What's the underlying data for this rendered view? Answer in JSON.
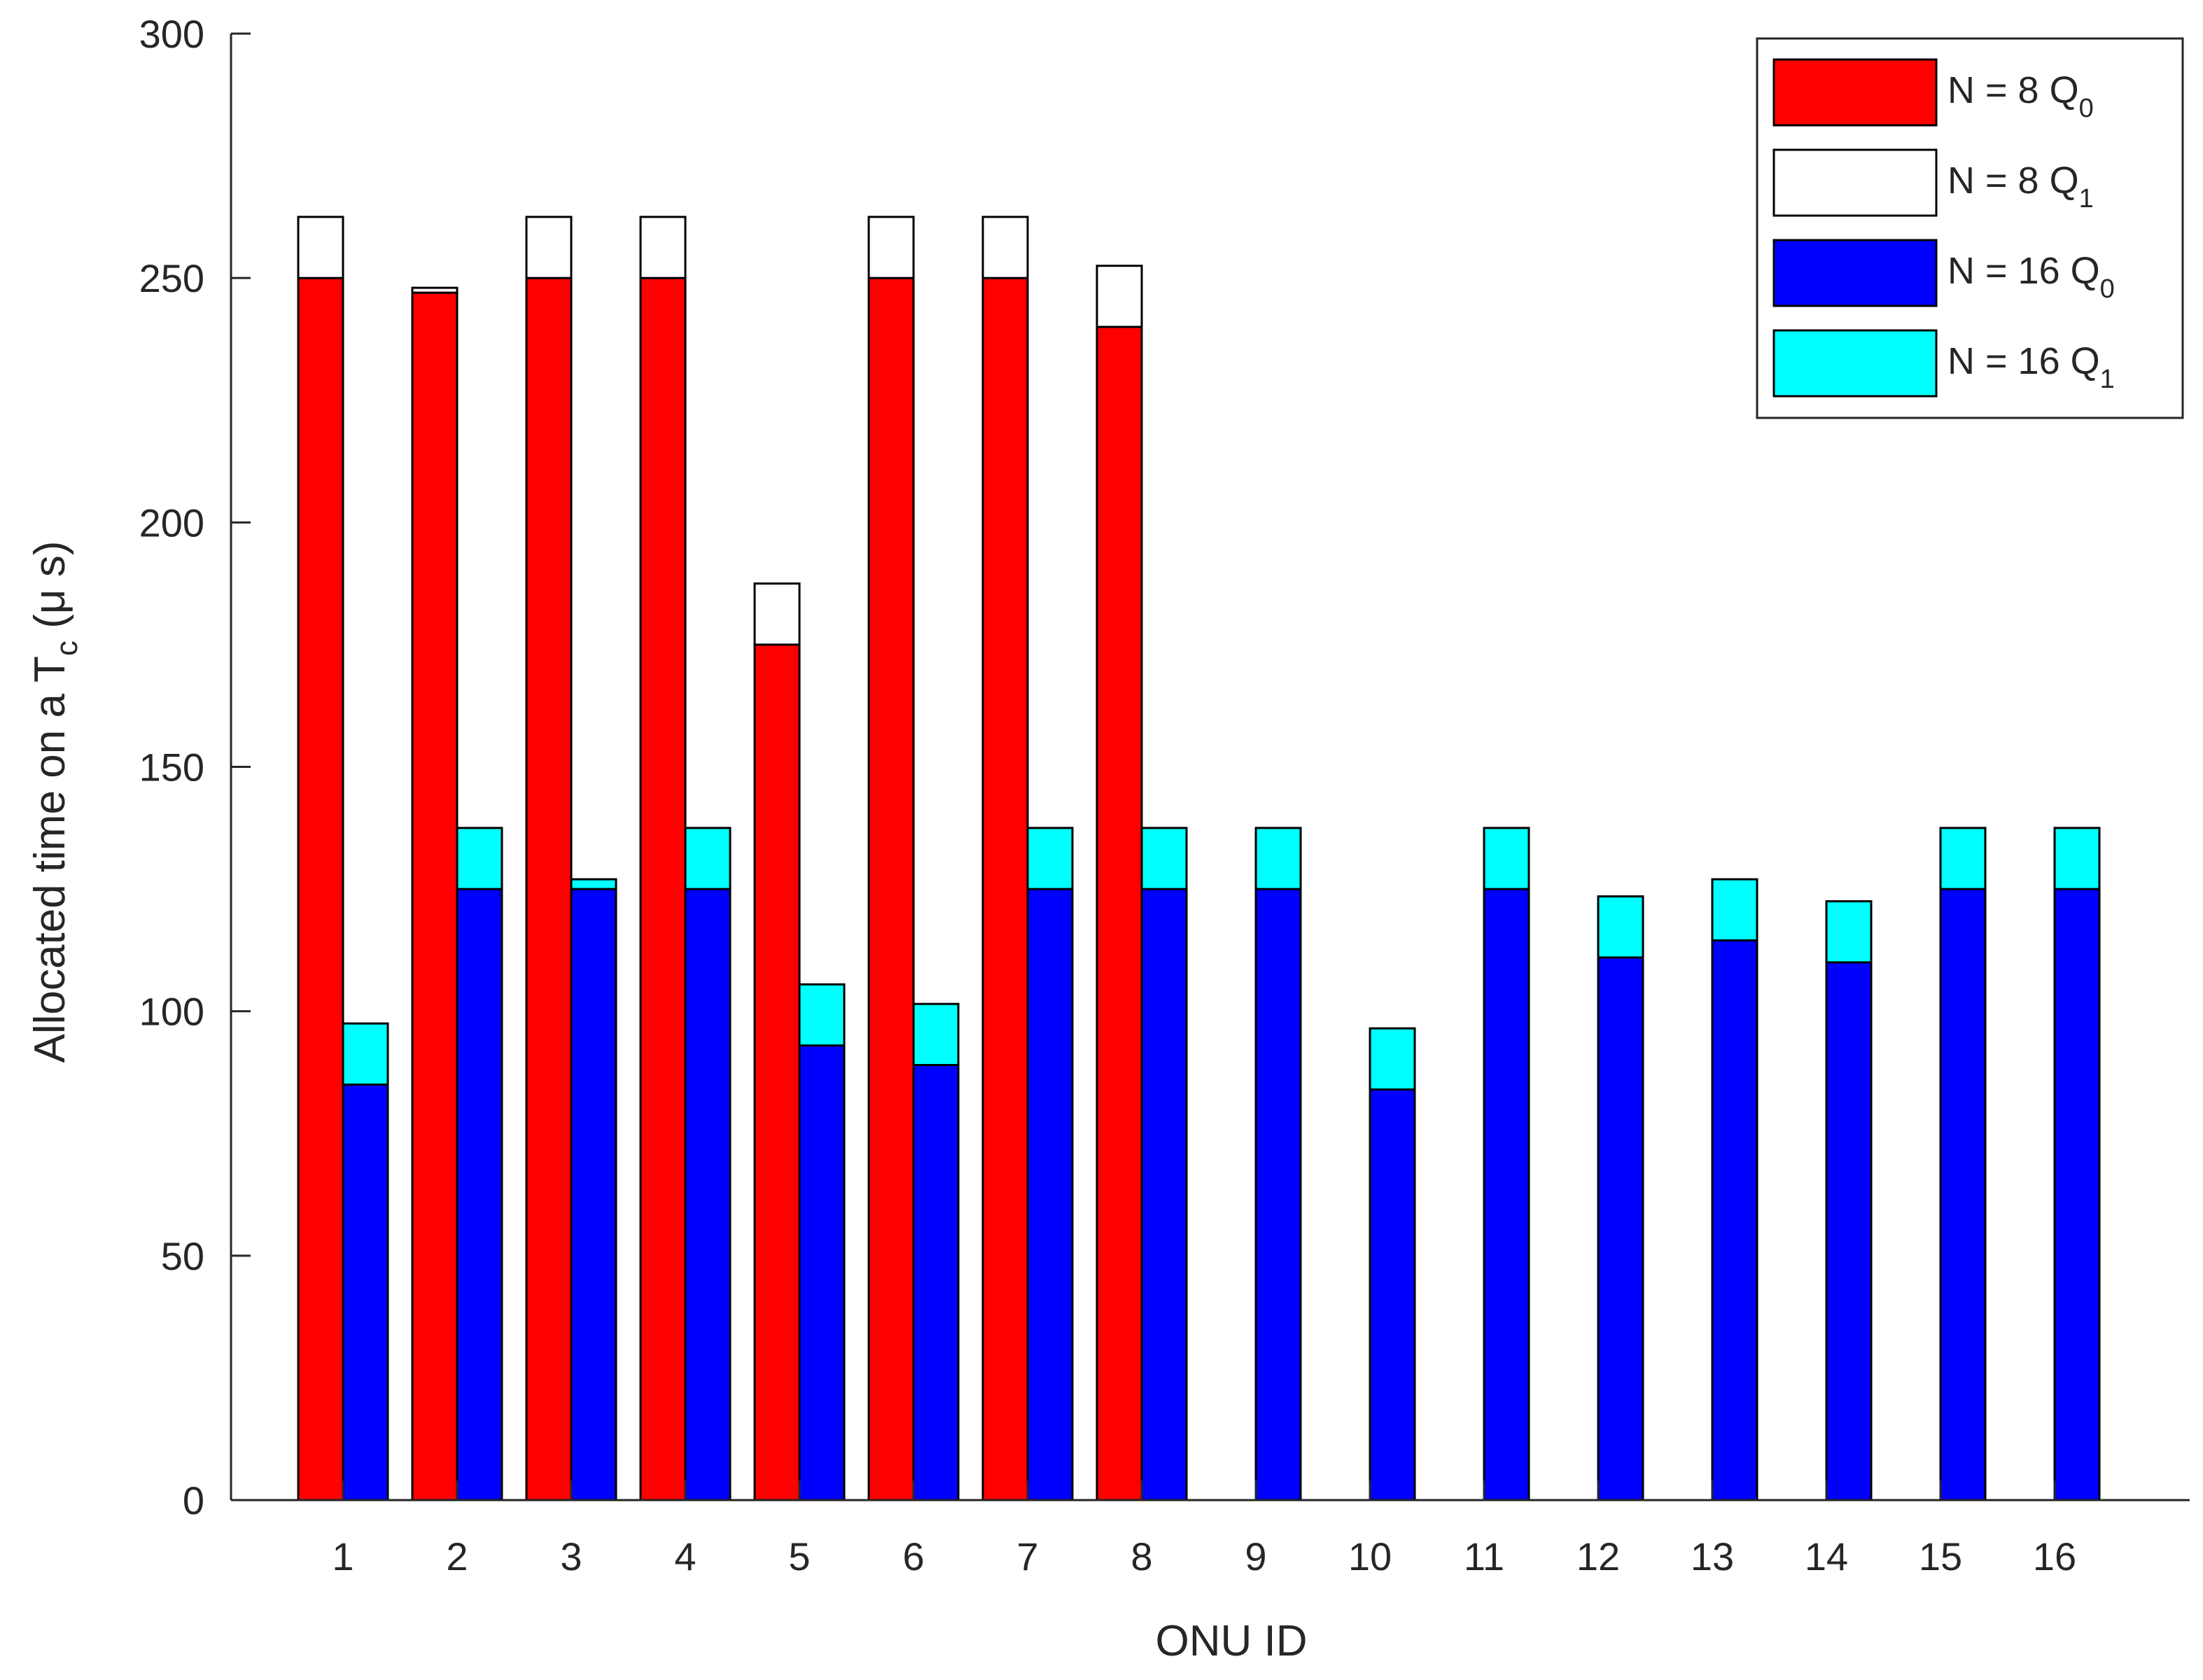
{
  "chart_data": {
    "type": "bar",
    "stacked": true,
    "grouped": true,
    "title": "",
    "xlabel": "ONU ID",
    "ylabel": "Allocated time on a T",
    "ylabel_sub": "c",
    "ylabel_suffix": " (μ s)",
    "ylim": [
      0,
      300
    ],
    "yticks": [
      0,
      50,
      100,
      150,
      200,
      250,
      300
    ],
    "categories": [
      "1",
      "2",
      "3",
      "4",
      "5",
      "6",
      "7",
      "8",
      "9",
      "10",
      "11",
      "12",
      "13",
      "14",
      "15",
      "16"
    ],
    "groups": [
      {
        "name": "N = 8",
        "series": [
          {
            "name": "N = 8 Q",
            "sub": "0",
            "color": "#ff0000",
            "values": [
              250,
              247,
              250,
              250,
              175,
              250,
              250,
              240,
              null,
              null,
              null,
              null,
              null,
              null,
              null,
              null
            ]
          },
          {
            "name": "N = 8 Q",
            "sub": "1",
            "color": "#ffffff",
            "values": [
              12.5,
              1,
              12.5,
              12.5,
              12.5,
              12.5,
              12.5,
              12.5,
              null,
              null,
              null,
              null,
              null,
              null,
              null,
              null
            ]
          }
        ]
      },
      {
        "name": "N = 16",
        "series": [
          {
            "name": "N = 16 Q",
            "sub": "0",
            "color": "#0000ff",
            "values": [
              85,
              125,
              125,
              125,
              93,
              89,
              125,
              125,
              125,
              84,
              125,
              111,
              114.5,
              110,
              125,
              125
            ]
          },
          {
            "name": "N = 16 Q",
            "sub": "1",
            "color": "#00ffff",
            "values": [
              12.5,
              12.5,
              2,
              12.5,
              12.5,
              12.5,
              12.5,
              12.5,
              12.5,
              12.5,
              12.5,
              12.5,
              12.5,
              12.5,
              12.5,
              12.5
            ]
          }
        ]
      }
    ],
    "legend": {
      "position": "top-right",
      "entries": [
        {
          "label": "N = 8 Q",
          "sub": "0",
          "color": "#ff0000"
        },
        {
          "label": "N = 8 Q",
          "sub": "1",
          "color": "#ffffff"
        },
        {
          "label": "N = 16 Q",
          "sub": "0",
          "color": "#0000ff"
        },
        {
          "label": "N = 16 Q",
          "sub": "1",
          "color": "#00ffff"
        }
      ]
    }
  }
}
